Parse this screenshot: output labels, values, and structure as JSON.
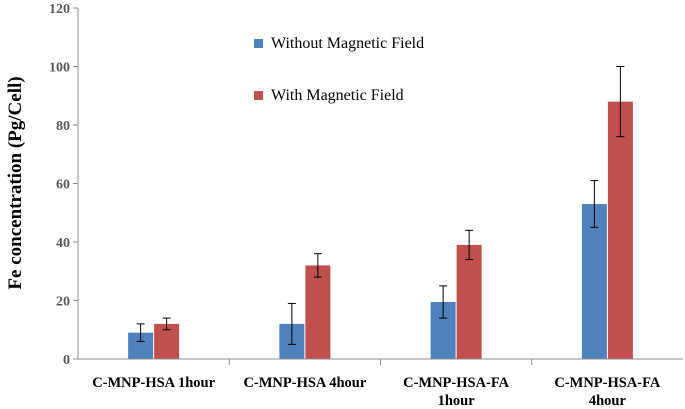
{
  "chart_data": {
    "type": "bar",
    "title": "",
    "xlabel": "",
    "ylabel": "Fe concentration (Pg/Cell)",
    "ylim": [
      0,
      120
    ],
    "yticks": [
      0,
      20,
      40,
      60,
      80,
      100,
      120
    ],
    "grid": false,
    "legend_position": "top-center",
    "categories": [
      [
        "C-MNP-HSA 1hour"
      ],
      [
        "C-MNP-HSA 4hour"
      ],
      [
        "C-MNP-HSA-FA",
        "1hour"
      ],
      [
        "C-MNP-HSA-FA",
        "4hour"
      ]
    ],
    "series": [
      {
        "name": "Without Magnetic Field",
        "color": "#4f81bd",
        "values": [
          9,
          12,
          19.5,
          53
        ],
        "errors": [
          3,
          7,
          5.5,
          8
        ]
      },
      {
        "name": "With Magnetic Field",
        "color": "#c0504d",
        "values": [
          12,
          32,
          39,
          88
        ],
        "errors": [
          2,
          4,
          5,
          12
        ]
      }
    ]
  }
}
